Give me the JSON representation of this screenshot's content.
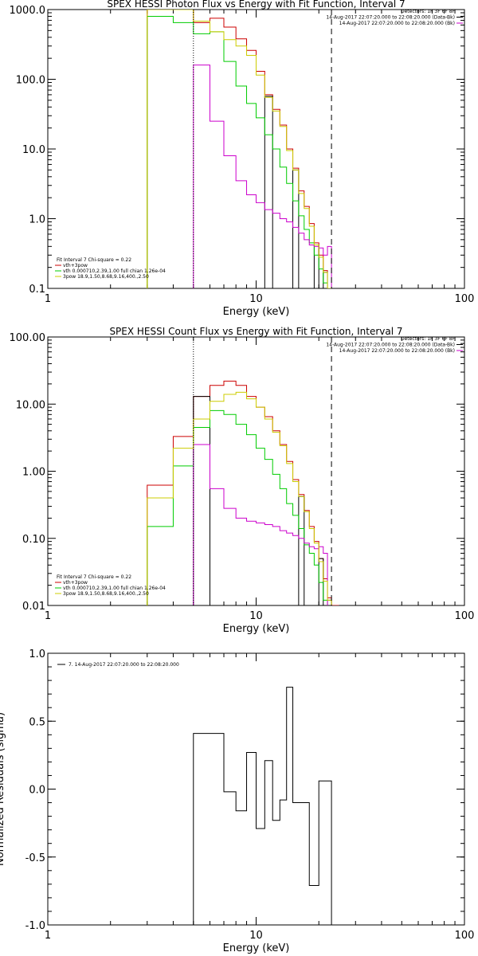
{
  "chart_data": [
    {
      "type": "line",
      "step": true,
      "title": "SPEX HESSI Photon Flux vs Energy with Fit Function, Interval 7",
      "xlabel": "Energy (keV)",
      "ylabel": "",
      "xscale": "log",
      "yscale": "log",
      "xlim": [
        1,
        100
      ],
      "ylim": [
        0.1,
        1000
      ],
      "x_ticks": [
        "1",
        "10",
        "100"
      ],
      "y_ticks": [
        "0.1",
        "1.0",
        "10.0",
        "100.0",
        "1000.0"
      ],
      "bin_edges": [
        3,
        4,
        5,
        6,
        7,
        8,
        9,
        10,
        11,
        12,
        13,
        14,
        15,
        16,
        17,
        18,
        19,
        20,
        21,
        22,
        23
      ],
      "vlines": [
        {
          "x": 5,
          "style": "dotted"
        },
        {
          "x": 23,
          "style": "dashed"
        }
      ],
      "header_lines": [
        "Detectors: 1F 3F 6F 8F",
        "14-Aug-2017 22:07:20.000 to 22:08:20.000 (Data-Bk)",
        "14-Aug-2017 22:07:20.000 to 22:08:20.000 (Bk)"
      ],
      "legend_lines": [
        "Fit Interval 7   Chi-square = 0.22",
        "vth+3pow",
        "vth 0.000710,2.39,1.00  full chian 1.26e-04",
        "3pow 18.9,1.50,8.68,9.16,400.,2.50"
      ],
      "legend_position": "bottom-left",
      "series": [
        {
          "color": "#cc0000",
          "values": [
            1000,
            1000,
            650,
            750,
            560,
            380,
            260,
            130,
            60,
            37,
            22,
            10,
            5.3,
            2.5,
            1.5,
            0.85,
            0.45,
            0.3,
            0.18,
            0.1
          ]
        },
        {
          "color": "#000000",
          "values": [
            null,
            null,
            null,
            null,
            null,
            null,
            null,
            null,
            57,
            null,
            null,
            null,
            5.0,
            null,
            null,
            null,
            0.42,
            null,
            0.17,
            null
          ]
        },
        {
          "color": "#00cc00",
          "values": [
            800,
            650,
            450,
            480,
            180,
            80,
            45,
            28,
            16,
            10,
            5.5,
            3.2,
            1.8,
            1.1,
            0.7,
            0.45,
            0.3,
            0.19,
            0.12,
            0.1
          ]
        },
        {
          "color": "#cc00cc",
          "values": [
            null,
            null,
            160,
            25,
            8.0,
            3.5,
            2.2,
            1.7,
            1.35,
            1.2,
            1.0,
            0.9,
            0.75,
            0.62,
            0.5,
            0.42,
            0.4,
            0.38,
            0.3,
            0.4
          ]
        },
        {
          "color": "#cccc00",
          "values": [
            1000,
            1000,
            680,
            480,
            370,
            300,
            220,
            115,
            55,
            35,
            21,
            9.5,
            5.0,
            2.3,
            1.4,
            0.78,
            0.42,
            0.28,
            0.17,
            0.1
          ]
        }
      ]
    },
    {
      "type": "line",
      "step": true,
      "title": "SPEX HESSI Count Flux vs Energy with Fit Function, Interval 7",
      "xlabel": "Energy (keV)",
      "ylabel": "",
      "xscale": "log",
      "yscale": "log",
      "xlim": [
        1,
        100
      ],
      "ylim": [
        0.01,
        100
      ],
      "x_ticks": [
        "1",
        "10",
        "100"
      ],
      "y_ticks": [
        "0.01",
        "0.10",
        "1.00",
        "10.00",
        "100.00"
      ],
      "bin_edges": [
        3,
        4,
        5,
        6,
        7,
        8,
        9,
        10,
        11,
        12,
        13,
        14,
        15,
        16,
        17,
        18,
        19,
        20,
        21,
        22,
        23,
        24,
        25
      ],
      "vlines": [
        {
          "x": 5,
          "style": "dotted"
        },
        {
          "x": 23,
          "style": "dashed"
        }
      ],
      "header_lines": [
        "Detectors: 1F 3F 6F 8F",
        "14-Aug-2017 22:07:20.000 to 22:08:20.000 (Data-Bk)",
        "14-Aug-2017 22:07:20.000 to 22:08:20.000 (Bk)"
      ],
      "legend_lines": [
        "Fit Interval 7   Chi-square = 0.22",
        "vth+3pow",
        "vth 0.000710,2.39,1.00  full chian 1.26e-04",
        "3pow 18.9,1.50,8.68,9.16,400.,2.50"
      ],
      "legend_position": "bottom-left",
      "series": [
        {
          "color": "#cc0000",
          "values": [
            0.62,
            3.3,
            13,
            19,
            22,
            19,
            13,
            9.0,
            6.5,
            4.0,
            2.5,
            1.4,
            0.75,
            0.45,
            0.26,
            0.15,
            0.09,
            0.05,
            0.025,
            0.013,
            0.01,
            0.01
          ]
        },
        {
          "color": "#000000",
          "values": [
            null,
            null,
            13,
            null,
            null,
            null,
            null,
            null,
            null,
            null,
            null,
            null,
            null,
            0.42,
            null,
            null,
            null,
            0.05,
            null,
            0.012,
            null,
            null
          ]
        },
        {
          "color": "#00cc00",
          "values": [
            0.15,
            1.2,
            4.5,
            8.0,
            7.0,
            5.0,
            3.5,
            2.2,
            1.5,
            0.9,
            0.55,
            0.33,
            0.22,
            0.14,
            0.08,
            0.06,
            0.04,
            0.022,
            0.012,
            null,
            null,
            null
          ]
        },
        {
          "color": "#cc00cc",
          "values": [
            null,
            null,
            2.5,
            0.55,
            0.28,
            0.2,
            0.18,
            0.17,
            0.16,
            0.15,
            0.13,
            0.12,
            0.11,
            0.1,
            0.085,
            0.075,
            0.07,
            0.075,
            0.06,
            null,
            null,
            null
          ]
        },
        {
          "color": "#cccc00",
          "values": [
            0.4,
            2.2,
            6.0,
            11,
            14,
            15,
            12,
            9.0,
            6.0,
            3.8,
            2.4,
            1.3,
            0.7,
            0.42,
            0.25,
            0.14,
            0.085,
            0.045,
            0.023,
            0.012,
            null,
            null
          ]
        }
      ]
    },
    {
      "type": "line",
      "step": true,
      "title": "",
      "xlabel": "Energy (keV)",
      "ylabel": "Normalized Residuals (sigma)",
      "xscale": "log",
      "yscale": "linear",
      "xlim": [
        1,
        100
      ],
      "ylim": [
        -1.0,
        1.0
      ],
      "x_ticks": [
        "1",
        "10",
        "100"
      ],
      "y_ticks": [
        "-1.0",
        "-0.5",
        "0.0",
        "0.5",
        "1.0"
      ],
      "bin_edges": [
        5,
        6,
        7,
        8,
        9,
        10,
        11,
        12,
        13,
        14,
        15,
        16,
        17,
        18,
        19,
        20,
        21,
        22,
        23
      ],
      "legend_lines": [
        "7. 14-Aug-2017 22:07:20.000 to 22:08:20.000"
      ],
      "legend_position": "top-left",
      "series": [
        {
          "color": "#000000",
          "values": [
            0.41,
            0.41,
            -0.02,
            -0.16,
            0.27,
            -0.29,
            0.21,
            -0.23,
            -0.08,
            0.75,
            -0.1,
            -0.1,
            -0.1,
            -0.71,
            -0.71,
            0.06,
            0.06,
            0.06
          ]
        }
      ]
    }
  ]
}
